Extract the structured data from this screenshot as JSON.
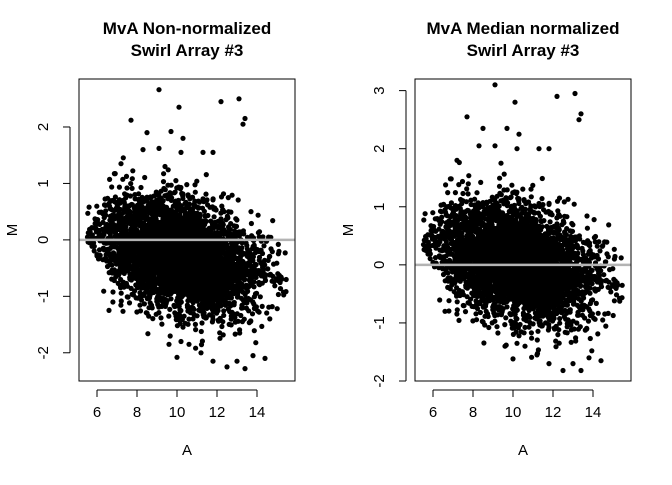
{
  "chart_data": [
    {
      "type": "scatter",
      "title": [
        "MvA Non-normalized",
        "Swirl Array #3"
      ],
      "xlabel": "A",
      "ylabel": "M",
      "xlim": [
        5.1,
        15.9
      ],
      "ylim": [
        -2.5,
        2.85
      ],
      "xticks": [
        6,
        8,
        10,
        12,
        14
      ],
      "yticks": [
        -2,
        -1,
        0,
        1,
        2
      ],
      "ref_line_y": 0,
      "colors": {
        "points": "#000000",
        "ref_line": "#b3b3b3"
      },
      "cloud": {
        "a_min": 5.5,
        "a_max": 15.5,
        "a_center": 10.2,
        "m_center_low_a": 0.15,
        "m_center_high_a": -0.75,
        "m_spread": 0.62
      },
      "outliers": [
        {
          "x": 9.1,
          "y": 2.66
        },
        {
          "x": 10.1,
          "y": 2.35
        },
        {
          "x": 12.2,
          "y": 2.45
        },
        {
          "x": 13.1,
          "y": 2.5
        },
        {
          "x": 13.4,
          "y": 2.15
        },
        {
          "x": 13.3,
          "y": 2.05
        },
        {
          "x": 7.7,
          "y": 2.12
        },
        {
          "x": 8.5,
          "y": 1.9
        },
        {
          "x": 9.7,
          "y": 1.92
        },
        {
          "x": 10.3,
          "y": 1.8
        },
        {
          "x": 11.8,
          "y": 1.55
        },
        {
          "x": 11.3,
          "y": 1.55
        },
        {
          "x": 9.1,
          "y": 1.62
        },
        {
          "x": 10.2,
          "y": 1.55
        },
        {
          "x": 8.3,
          "y": 1.6
        },
        {
          "x": 9.4,
          "y": 1.3
        },
        {
          "x": 7.2,
          "y": 1.35
        },
        {
          "x": 6.6,
          "y": -1.25
        },
        {
          "x": 10.0,
          "y": -2.08
        },
        {
          "x": 10.6,
          "y": -1.85
        },
        {
          "x": 11.2,
          "y": -2.0
        },
        {
          "x": 11.8,
          "y": -2.15
        },
        {
          "x": 12.5,
          "y": -2.25
        },
        {
          "x": 13.0,
          "y": -2.15
        },
        {
          "x": 13.4,
          "y": -2.28
        },
        {
          "x": 13.8,
          "y": -2.05
        },
        {
          "x": 14.4,
          "y": -2.1
        },
        {
          "x": 9.6,
          "y": -1.85
        },
        {
          "x": 10.2,
          "y": -1.8
        }
      ]
    },
    {
      "type": "scatter",
      "title": [
        "MvA Median normalized",
        "Swirl Array #3"
      ],
      "xlabel": "A",
      "ylabel": "M",
      "xlim": [
        5.1,
        15.9
      ],
      "ylim": [
        -2.0,
        3.2
      ],
      "xticks": [
        6,
        8,
        10,
        12,
        14
      ],
      "yticks": [
        -2,
        -1,
        0,
        1,
        2,
        3
      ],
      "ref_line_y": 0,
      "colors": {
        "points": "#000000",
        "ref_line": "#b3b3b3"
      },
      "cloud": {
        "a_min": 5.5,
        "a_max": 15.5,
        "a_center": 10.2,
        "m_center_low_a": 0.45,
        "m_center_high_a": -0.4,
        "m_spread": 0.62
      },
      "outliers": [
        {
          "x": 9.1,
          "y": 3.1
        },
        {
          "x": 10.1,
          "y": 2.8
        },
        {
          "x": 12.2,
          "y": 2.9
        },
        {
          "x": 13.1,
          "y": 2.95
        },
        {
          "x": 13.4,
          "y": 2.6
        },
        {
          "x": 13.3,
          "y": 2.5
        },
        {
          "x": 7.7,
          "y": 2.55
        },
        {
          "x": 8.5,
          "y": 2.35
        },
        {
          "x": 9.7,
          "y": 2.35
        },
        {
          "x": 10.3,
          "y": 2.25
        },
        {
          "x": 11.8,
          "y": 2.0
        },
        {
          "x": 11.3,
          "y": 2.0
        },
        {
          "x": 9.1,
          "y": 2.05
        },
        {
          "x": 10.2,
          "y": 2.0
        },
        {
          "x": 8.3,
          "y": 2.05
        },
        {
          "x": 9.4,
          "y": 1.75
        },
        {
          "x": 7.2,
          "y": 1.8
        },
        {
          "x": 6.6,
          "y": -0.8
        },
        {
          "x": 10.0,
          "y": -1.62
        },
        {
          "x": 10.6,
          "y": -1.4
        },
        {
          "x": 11.2,
          "y": -1.55
        },
        {
          "x": 11.8,
          "y": -1.7
        },
        {
          "x": 12.5,
          "y": -1.82
        },
        {
          "x": 13.0,
          "y": -1.7
        },
        {
          "x": 13.4,
          "y": -1.82
        },
        {
          "x": 13.8,
          "y": -1.6
        },
        {
          "x": 14.4,
          "y": -1.65
        },
        {
          "x": 9.6,
          "y": -1.4
        },
        {
          "x": 10.2,
          "y": -1.35
        }
      ]
    }
  ]
}
